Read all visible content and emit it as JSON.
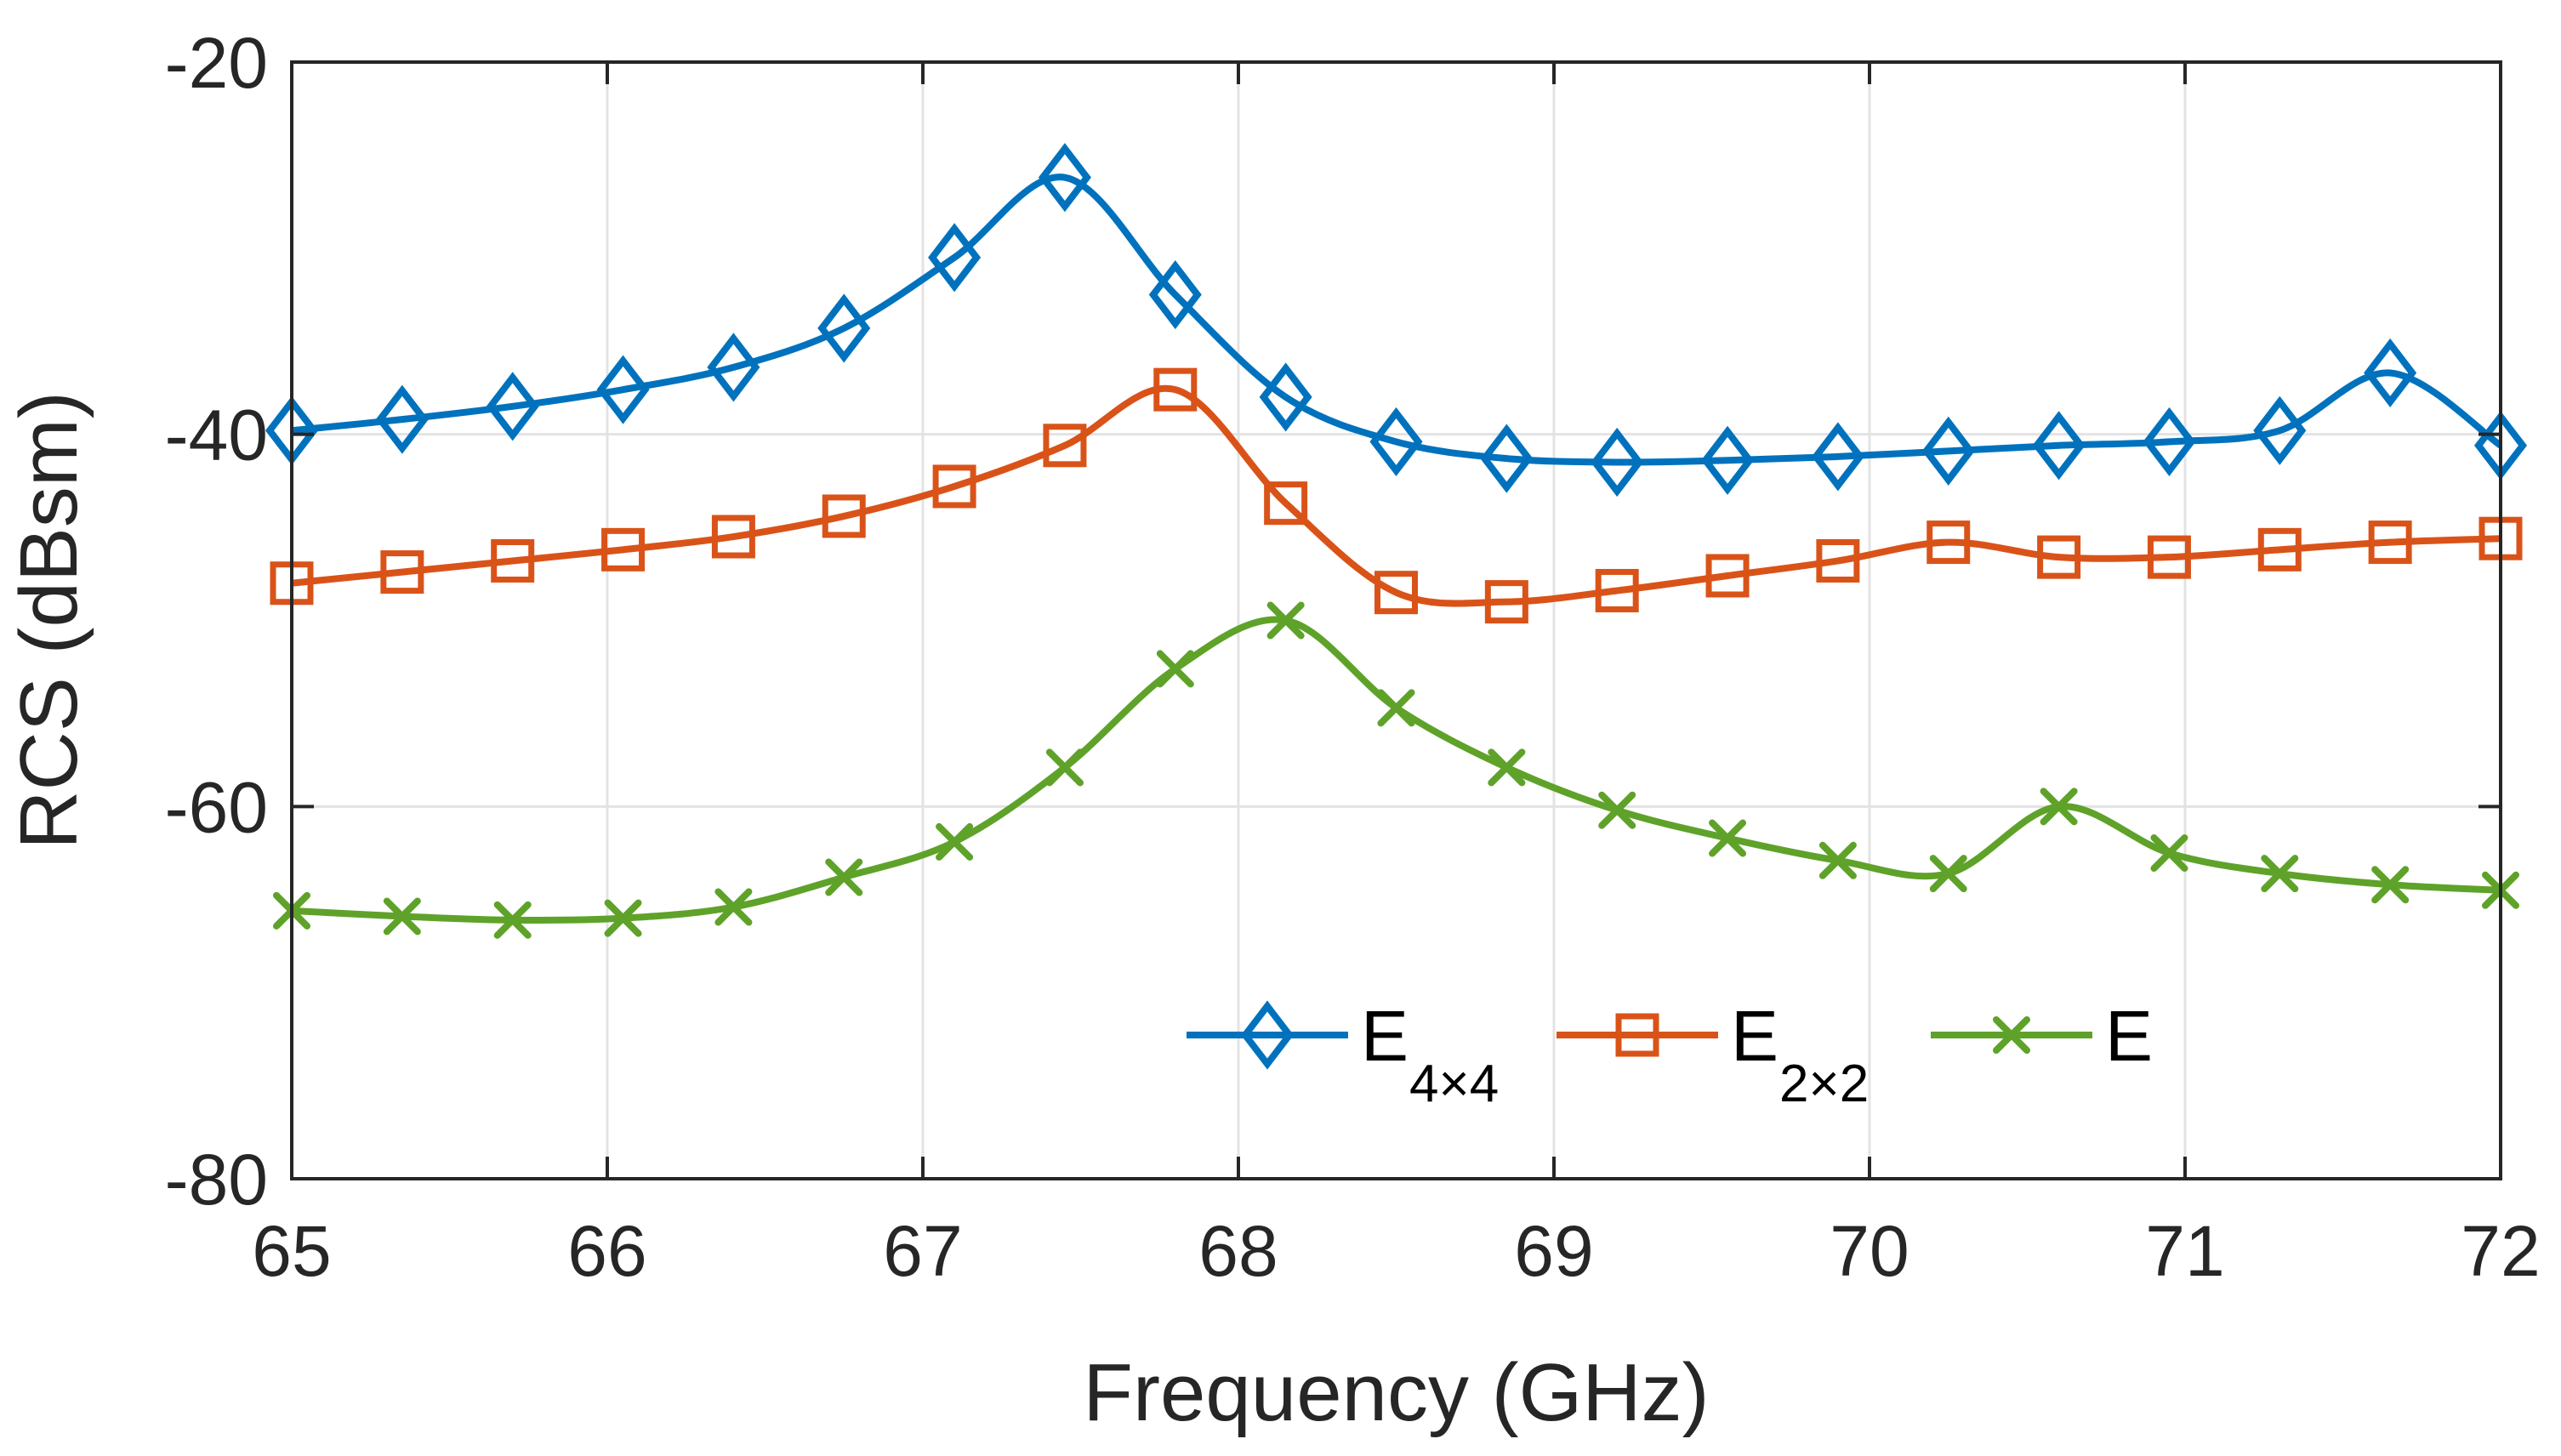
{
  "chart_data": {
    "type": "line",
    "title": "",
    "xlabel": "Frequency (GHz)",
    "ylabel": "RCS (dBsm)",
    "xlim": [
      65,
      72
    ],
    "ylim": [
      -80,
      -20
    ],
    "xticks": [
      65,
      66,
      67,
      68,
      69,
      70,
      71,
      72
    ],
    "yticks": [
      -80,
      -60,
      -40,
      -20
    ],
    "xtick_labels": [
      "65",
      "66",
      "67",
      "68",
      "69",
      "70",
      "71",
      "72"
    ],
    "ytick_labels": [
      "-80",
      "-60",
      "-40",
      "-20"
    ],
    "grid": true,
    "legend_position": "bottom-right",
    "series": [
      {
        "name": "E4×4",
        "legend_main": "E",
        "legend_sub": "4×4",
        "color": "#0072BD",
        "marker": "diamond",
        "x": [
          65.0,
          65.35,
          65.7,
          66.05,
          66.4,
          66.75,
          67.1,
          67.45,
          67.8,
          68.15,
          68.5,
          68.85,
          69.2,
          69.55,
          69.9,
          70.25,
          70.6,
          70.95,
          71.3,
          71.65,
          72.0
        ],
        "values": [
          -39.8,
          -39.2,
          -38.5,
          -37.6,
          -36.4,
          -34.3,
          -30.5,
          -26.2,
          -32.5,
          -38.0,
          -40.4,
          -41.3,
          -41.5,
          -41.4,
          -41.2,
          -40.9,
          -40.6,
          -40.4,
          -39.8,
          -36.7,
          -40.6
        ]
      },
      {
        "name": "E2×2",
        "legend_main": "E",
        "legend_sub": "2×2",
        "color": "#D95319",
        "marker": "square",
        "x": [
          65.0,
          65.35,
          65.7,
          66.05,
          66.4,
          66.75,
          67.1,
          67.45,
          67.8,
          68.15,
          68.5,
          68.85,
          69.2,
          69.55,
          69.9,
          70.25,
          70.6,
          70.95,
          71.3,
          71.65,
          72.0
        ],
        "values": [
          -48.0,
          -47.4,
          -46.8,
          -46.2,
          -45.5,
          -44.4,
          -42.8,
          -40.6,
          -37.6,
          -43.7,
          -48.5,
          -49.0,
          -48.4,
          -47.6,
          -46.8,
          -45.8,
          -46.6,
          -46.6,
          -46.2,
          -45.8,
          -45.6
        ]
      },
      {
        "name": "E",
        "legend_main": "E",
        "legend_sub": "",
        "color": "#5FA22A",
        "marker": "x",
        "x": [
          65.0,
          65.35,
          65.7,
          66.05,
          66.4,
          66.75,
          67.1,
          67.45,
          67.8,
          68.15,
          68.5,
          68.85,
          69.2,
          69.55,
          69.9,
          70.25,
          70.6,
          70.95,
          71.3,
          71.65,
          72.0
        ],
        "values": [
          -65.6,
          -65.9,
          -66.1,
          -66.0,
          -65.4,
          -63.8,
          -61.9,
          -57.9,
          -52.6,
          -50.0,
          -54.7,
          -57.9,
          -60.2,
          -61.7,
          -62.9,
          -63.6,
          -60.0,
          -62.5,
          -63.6,
          -64.2,
          -64.5
        ]
      }
    ]
  }
}
